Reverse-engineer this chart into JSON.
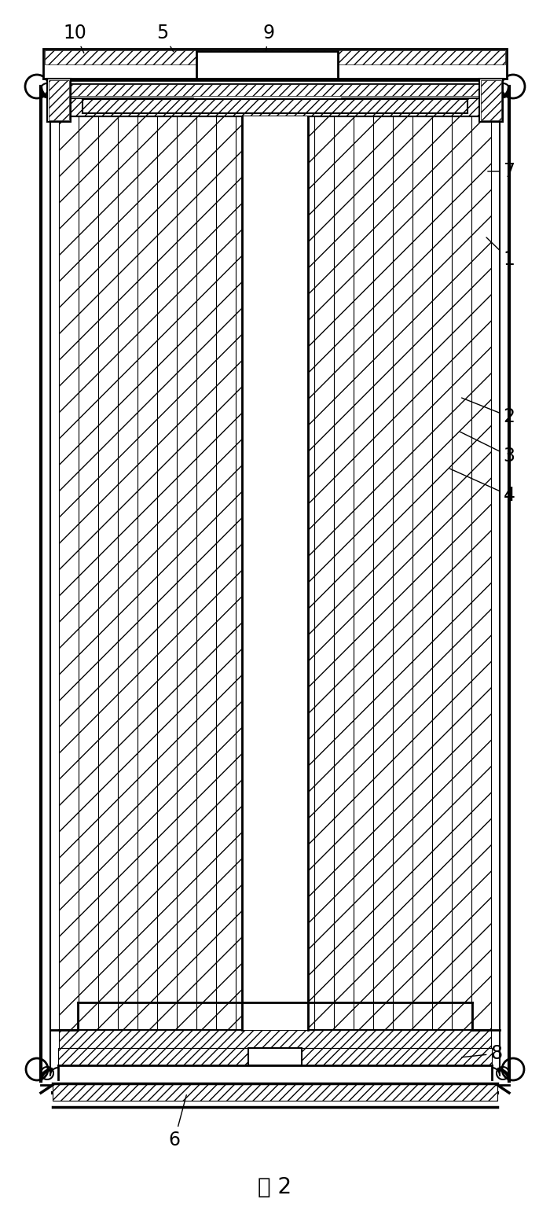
{
  "figure_label": "图 2",
  "bg_color": "#ffffff",
  "line_color": "#000000",
  "figsize": [
    7.0,
    15.53
  ],
  "dpi": 100,
  "label_info": [
    [
      "10",
      95,
      42,
      108,
      70
    ],
    [
      "5",
      207,
      42,
      222,
      68
    ],
    [
      "9",
      342,
      42,
      338,
      68
    ],
    [
      "7",
      648,
      218,
      618,
      218
    ],
    [
      "1",
      648,
      330,
      617,
      300
    ],
    [
      "2",
      648,
      530,
      585,
      505
    ],
    [
      "3",
      648,
      580,
      583,
      548
    ],
    [
      "4",
      648,
      630,
      570,
      595
    ],
    [
      "8",
      632,
      1340,
      585,
      1345
    ],
    [
      "6",
      222,
      1450,
      238,
      1390
    ]
  ]
}
